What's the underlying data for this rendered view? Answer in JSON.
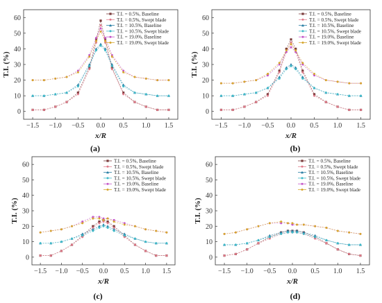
{
  "series_style": {
    "t05_base": {
      "color": "#7a3b3b",
      "marker": "square"
    },
    "t05_swept": {
      "color": "#e07a8a",
      "marker": "circle"
    },
    "t105_base": {
      "color": "#2a7fa5",
      "marker": "triangle"
    },
    "t105_swept": {
      "color": "#3fb9c8",
      "marker": "circle"
    },
    "t19_base": {
      "color": "#c455c8",
      "marker": "circle"
    },
    "t19_swept": {
      "color": "#d6a62e",
      "marker": "circle"
    }
  },
  "chart_data": [
    {
      "type": "line",
      "panel_label": "(a)",
      "xlabel": "x/R",
      "ylabel": "T.I. (%)",
      "xlim": [
        -1.7,
        1.7
      ],
      "ylim": [
        -5,
        65
      ],
      "xticks": [
        "-1.5",
        "-1.0",
        "-0.5",
        "0.0",
        "0.5",
        "1.0",
        "1.5"
      ],
      "yticks": [
        "0",
        "10",
        "20",
        "30",
        "40",
        "50",
        "60"
      ],
      "legend": "top-right",
      "x": [
        -1.5,
        -1.25,
        -1.0,
        -0.75,
        -0.5,
        -0.25,
        -0.1,
        0.0,
        0.1,
        0.25,
        0.5,
        0.75,
        1.0,
        1.25,
        1.5
      ],
      "series": [
        {
          "key": "t05_base",
          "name": "T.I. = 0.5%, Baseline",
          "values": [
            1,
            1,
            3,
            6,
            12,
            28,
            46,
            58,
            46,
            28,
            12,
            6,
            3,
            1,
            1
          ]
        },
        {
          "key": "t05_swept",
          "name": "T.I. = 0.5%, Swept blade",
          "values": [
            1,
            1,
            3,
            6,
            11,
            27,
            44,
            55,
            44,
            27,
            11,
            6,
            3,
            1,
            1
          ]
        },
        {
          "key": "t105_base",
          "name": "T.I. = 10.5%, Baseline",
          "values": [
            10,
            10,
            11,
            12,
            17,
            30,
            40,
            43,
            40,
            30,
            17,
            12,
            11,
            10,
            10
          ]
        },
        {
          "key": "t105_swept",
          "name": "T.I. = 10.5%, Swept blade",
          "values": [
            10,
            10,
            11,
            12,
            16,
            29,
            39,
            42,
            39,
            29,
            16,
            12,
            11,
            10,
            10
          ]
        },
        {
          "key": "t19_base",
          "name": "T.I. = 19.0%, Baseline",
          "values": [
            20,
            20,
            21,
            22,
            26,
            36,
            47,
            53,
            47,
            36,
            26,
            22,
            21,
            20,
            20
          ]
        },
        {
          "key": "t19_swept",
          "name": "T.I. = 19.0%, Swept blade",
          "values": [
            20,
            20,
            21,
            22,
            25,
            35,
            45,
            51,
            45,
            35,
            25,
            22,
            21,
            20,
            20
          ]
        }
      ]
    },
    {
      "type": "line",
      "panel_label": "(b)",
      "xlabel": "x/R",
      "ylabel": "T.I. (%)",
      "xlim": [
        -1.7,
        1.7
      ],
      "ylim": [
        -5,
        65
      ],
      "xticks": [
        "-1.5",
        "-1.0",
        "-0.5",
        "0.0",
        "0.5",
        "1.0",
        "1.5"
      ],
      "yticks": [
        "0",
        "10",
        "20",
        "30",
        "40",
        "50",
        "60"
      ],
      "legend": "top-right",
      "x": [
        -1.5,
        -1.25,
        -1.0,
        -0.75,
        -0.5,
        -0.25,
        -0.1,
        0.0,
        0.1,
        0.25,
        0.5,
        0.75,
        1.0,
        1.25,
        1.5
      ],
      "series": [
        {
          "key": "t05_base",
          "name": "T.I. = 0.5%, Baseline",
          "values": [
            1,
            1,
            3,
            6,
            11,
            26,
            40,
            46,
            40,
            26,
            11,
            6,
            3,
            1,
            1
          ]
        },
        {
          "key": "t05_swept",
          "name": "T.I. = 0.5%, Swept blade",
          "values": [
            1,
            1,
            3,
            6,
            10,
            25,
            38,
            44,
            38,
            25,
            10,
            6,
            3,
            1,
            1
          ]
        },
        {
          "key": "t105_base",
          "name": "T.I. = 10.5%, Baseline",
          "values": [
            10,
            10,
            11,
            12,
            15,
            22,
            28,
            30,
            28,
            22,
            15,
            12,
            11,
            10,
            10
          ]
        },
        {
          "key": "t105_swept",
          "name": "T.I. = 10.5%, Swept blade",
          "values": [
            10,
            10,
            11,
            12,
            15,
            21,
            27,
            29,
            27,
            21,
            15,
            12,
            11,
            10,
            10
          ]
        },
        {
          "key": "t19_base",
          "name": "T.I. = 19.0%, Baseline",
          "values": [
            18,
            18,
            19,
            20,
            23,
            30,
            38,
            41,
            38,
            30,
            23,
            20,
            19,
            18,
            18
          ]
        },
        {
          "key": "t19_swept",
          "name": "T.I. = 19.0%, Swept blade",
          "values": [
            18,
            18,
            19,
            20,
            24,
            31,
            39,
            43,
            39,
            31,
            24,
            20,
            19,
            18,
            18
          ]
        }
      ]
    },
    {
      "type": "line",
      "panel_label": "(c)",
      "xlabel": "x/R",
      "ylabel": "T.I. (%)",
      "xlim": [
        -1.7,
        1.7
      ],
      "ylim": [
        -5,
        65
      ],
      "xticks": [
        "-1.5",
        "-1.0",
        "-0.5",
        "0.0",
        "0.5",
        "1.0",
        "1.5"
      ],
      "yticks": [
        "0",
        "10",
        "20",
        "30",
        "40",
        "50",
        "60"
      ],
      "legend": "top-right",
      "x": [
        -1.5,
        -1.25,
        -1.0,
        -0.75,
        -0.5,
        -0.25,
        -0.1,
        0.0,
        0.1,
        0.25,
        0.5,
        0.75,
        1.0,
        1.25,
        1.5
      ],
      "series": [
        {
          "key": "t05_base",
          "name": "T.I. = 0.5%, Baseline",
          "values": [
            1,
            1,
            4,
            8,
            14,
            20,
            23,
            24,
            23,
            20,
            14,
            8,
            4,
            1,
            1
          ]
        },
        {
          "key": "t05_swept",
          "name": "T.I. = 0.5%, Swept blade",
          "values": [
            1,
            1,
            4,
            8,
            13,
            19,
            22,
            23,
            22,
            19,
            13,
            8,
            4,
            1,
            1
          ]
        },
        {
          "key": "t105_base",
          "name": "T.I. = 10.5%, Baseline",
          "values": [
            9,
            9,
            10,
            12,
            15,
            18,
            20,
            21,
            20,
            18,
            15,
            12,
            10,
            9,
            9
          ]
        },
        {
          "key": "t105_swept",
          "name": "T.I. = 10.5%, Swept blade",
          "values": [
            9,
            9,
            10,
            12,
            14,
            17,
            19,
            20,
            19,
            17,
            14,
            12,
            10,
            9,
            9
          ]
        },
        {
          "key": "t19_base",
          "name": "T.I. = 19.0%, Baseline",
          "values": [
            16,
            17,
            18,
            20,
            23,
            26,
            26,
            25,
            25,
            24,
            22,
            20,
            18,
            17,
            16
          ]
        },
        {
          "key": "t19_swept",
          "name": "T.I. = 19.0%, Swept blade",
          "values": [
            16,
            17,
            18,
            20,
            22,
            25,
            25,
            24,
            25,
            23,
            21,
            20,
            18,
            17,
            16
          ]
        }
      ]
    },
    {
      "type": "line",
      "panel_label": "(d)",
      "xlabel": "x/R",
      "ylabel": "T.I. (%)",
      "xlim": [
        -1.7,
        1.7
      ],
      "ylim": [
        -5,
        65
      ],
      "xticks": [
        "-1.5",
        "-1.0",
        "-0.5",
        "0.0",
        "0.5",
        "1.0",
        "1.5"
      ],
      "yticks": [
        "0",
        "10",
        "20",
        "30",
        "40",
        "50",
        "60"
      ],
      "legend": "top-right",
      "x": [
        -1.5,
        -1.25,
        -1.0,
        -0.75,
        -0.5,
        -0.25,
        -0.1,
        0.0,
        0.1,
        0.25,
        0.5,
        0.75,
        1.0,
        1.25,
        1.5
      ],
      "series": [
        {
          "key": "t05_base",
          "name": "T.I. = 0.5%, Baseline",
          "values": [
            1,
            2,
            5,
            9,
            13,
            16,
            17,
            17,
            17,
            16,
            13,
            9,
            5,
            2,
            1
          ]
        },
        {
          "key": "t05_swept",
          "name": "T.I. = 0.5%, Swept blade",
          "values": [
            1,
            2,
            5,
            9,
            12,
            15,
            16,
            16,
            16,
            15,
            12,
            9,
            5,
            2,
            1
          ]
        },
        {
          "key": "t105_base",
          "name": "T.I. = 10.5%, Baseline",
          "values": [
            8,
            8,
            9,
            11,
            14,
            16,
            17,
            17,
            17,
            16,
            14,
            11,
            9,
            8,
            8
          ]
        },
        {
          "key": "t105_swept",
          "name": "T.I. = 10.5%, Swept blade",
          "values": [
            8,
            8,
            9,
            11,
            13,
            15,
            16,
            16,
            16,
            15,
            13,
            11,
            9,
            8,
            8
          ]
        },
        {
          "key": "t19_base",
          "name": "T.I. = 19.0%, Baseline",
          "values": [
            15,
            16,
            18,
            20,
            22,
            22,
            22,
            21,
            21,
            21,
            20,
            19,
            17,
            16,
            15
          ]
        },
        {
          "key": "t19_swept",
          "name": "T.I. = 19.0%, Swept blade",
          "values": [
            15,
            16,
            18,
            20,
            22,
            23,
            22,
            22,
            21,
            21,
            20,
            19,
            17,
            16,
            15
          ]
        }
      ]
    }
  ]
}
